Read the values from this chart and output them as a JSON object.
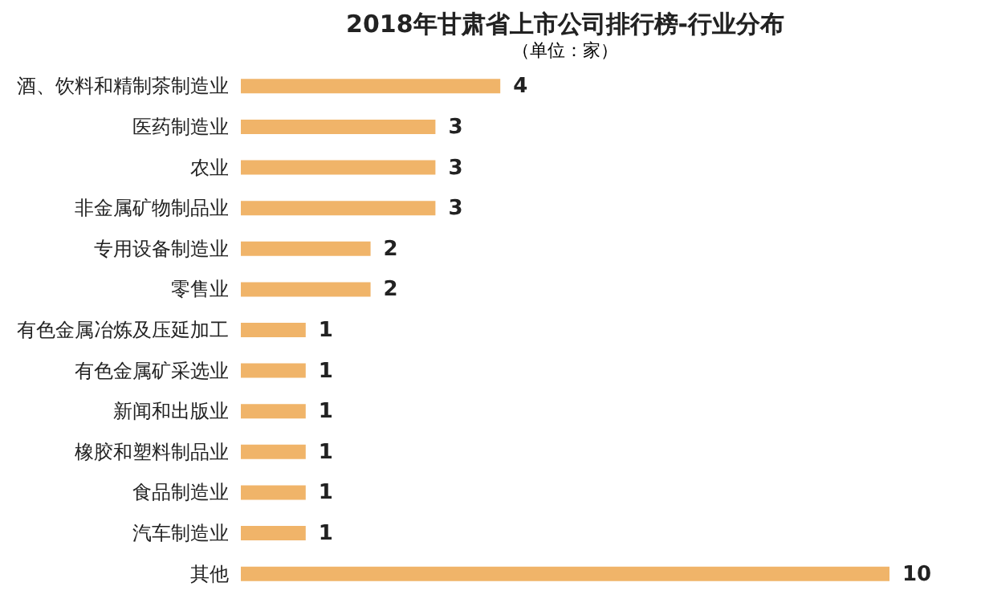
{
  "chart_data": {
    "type": "bar",
    "orientation": "horizontal",
    "title": "2018年甘肃省上市公司排行榜-行业分布",
    "subtitle": "（单位：家）",
    "categories": [
      "酒、饮料和精制茶制造业",
      "医药制造业",
      "农业",
      "非金属矿物制品业",
      "专用设备制造业",
      "零售业",
      "有色金属冶炼及压延加工",
      "有色金属矿采选业",
      "新闻和出版业",
      "橡胶和塑料制品业",
      "食品制造业",
      "汽车制造业",
      "其他"
    ],
    "values": [
      4,
      3,
      3,
      3,
      2,
      2,
      1,
      1,
      1,
      1,
      1,
      1,
      10
    ],
    "color": "#f0b469",
    "data_labels": true
  }
}
